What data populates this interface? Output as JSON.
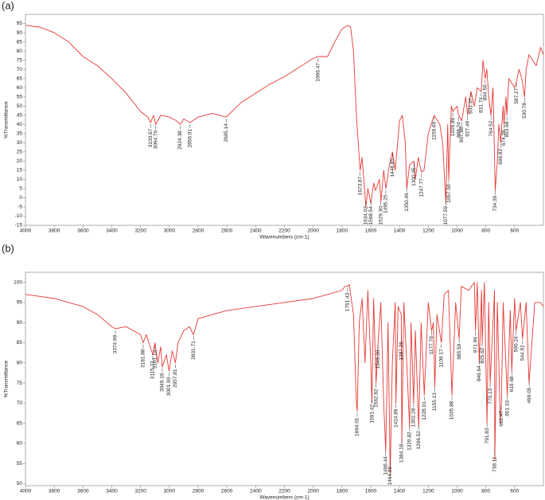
{
  "chart_data": [
    {
      "type": "line",
      "panel_label": "(a)",
      "xlabel": "Wavenumbers (cm-1)",
      "ylabel": "%Transmittance",
      "color": "#e53935",
      "xlim": [
        4000,
        400
      ],
      "ylim": [
        -15,
        100
      ],
      "xticks": [
        4000,
        3800,
        3600,
        3400,
        3200,
        3000,
        2800,
        2600,
        2400,
        2200,
        2000,
        1800,
        1600,
        1400,
        1200,
        1000,
        800,
        600
      ],
      "yticks": [
        -15,
        -10,
        -5,
        0,
        5,
        10,
        15,
        20,
        25,
        30,
        35,
        40,
        45,
        50,
        55,
        60,
        65,
        70,
        75,
        80,
        85,
        90,
        95
      ],
      "x": [
        4000,
        3900,
        3800,
        3700,
        3600,
        3500,
        3400,
        3300,
        3200,
        3150,
        3130,
        3110,
        3094,
        3060,
        3000,
        2950,
        2924,
        2900,
        2856,
        2800,
        2700,
        2605,
        2500,
        2400,
        2300,
        2200,
        2100,
        2000,
        1966,
        1900,
        1850,
        1800,
        1760,
        1740,
        1720,
        1700,
        1674,
        1660,
        1634,
        1620,
        1599,
        1580,
        1567,
        1540,
        1529,
        1510,
        1495,
        1470,
        1449,
        1430,
        1400,
        1380,
        1360,
        1350,
        1330,
        1300,
        1290,
        1270,
        1248,
        1230,
        1200,
        1160,
        1120,
        1100,
        1078,
        1065,
        1058,
        1040,
        1029,
        1000,
        989,
        968,
        940,
        927,
        904,
        880,
        860,
        832,
        820,
        805,
        793,
        780,
        765,
        750,
        735,
        720,
        710,
        697,
        680,
        674,
        660,
        654,
        640,
        600,
        588,
        570,
        550,
        531,
        520,
        500,
        450,
        420,
        400
      ],
      "values": [
        94,
        93,
        90,
        85,
        77,
        72,
        65,
        57,
        47,
        44,
        41,
        45,
        40,
        45,
        44,
        42,
        40,
        43,
        41,
        44,
        46,
        44,
        52,
        57,
        62,
        66,
        71,
        76,
        77,
        77,
        85,
        92,
        94,
        93,
        80,
        45,
        15,
        22,
        -5,
        5,
        -3,
        8,
        4,
        10,
        -2,
        15,
        5,
        18,
        25,
        15,
        42,
        45,
        30,
        5,
        18,
        20,
        10,
        22,
        14,
        15,
        35,
        45,
        40,
        30,
        -3,
        40,
        10,
        50,
        47,
        50,
        45,
        42,
        55,
        45,
        58,
        50,
        60,
        58,
        75,
        65,
        70,
        55,
        45,
        60,
        4,
        20,
        40,
        30,
        50,
        40,
        55,
        45,
        65,
        60,
        63,
        70,
        65,
        55,
        70,
        78,
        72,
        82,
        78
      ],
      "peaks": [
        {
          "value": 3130.67,
          "label": "3130.67"
        },
        {
          "value": 3094.7,
          "label": "3094.70"
        },
        {
          "value": 2924.38,
          "label": "2924.38"
        },
        {
          "value": 2856.01,
          "label": "2856.01"
        },
        {
          "value": 2605.14,
          "label": "2605.14"
        },
        {
          "value": 1966.47,
          "label": "1966.47"
        },
        {
          "value": 1673.87,
          "label": "1673.87"
        },
        {
          "value": 1634.02,
          "label": "1634.02"
        },
        {
          "value": 1598.54,
          "label": "1598.54"
        },
        {
          "value": 1529.3,
          "label": "1529.30"
        },
        {
          "value": 1495.25,
          "label": "1495.25"
        },
        {
          "value": 1448.85,
          "label": "1448.85"
        },
        {
          "value": 1350.46,
          "label": "1350.46"
        },
        {
          "value": 1300.05,
          "label": "1300.05"
        },
        {
          "value": 1247.77,
          "label": "1247.77"
        },
        {
          "value": 1159.69,
          "label": "1159.69"
        },
        {
          "value": 1077.59,
          "label": "1077.59"
        },
        {
          "value": 1057.59,
          "label": "1057.59"
        },
        {
          "value": 1029.86,
          "label": "1029.86"
        },
        {
          "value": 988.24,
          "label": "988.24"
        },
        {
          "value": 967.68,
          "label": "967.68"
        },
        {
          "value": 927.49,
          "label": "927.49"
        },
        {
          "value": 903.37,
          "label": "903.37"
        },
        {
          "value": 831.74,
          "label": "831.74"
        },
        {
          "value": 804.56,
          "label": "804.56"
        },
        {
          "value": 764.52,
          "label": "764.52"
        },
        {
          "value": 734.39,
          "label": "734.39"
        },
        {
          "value": 696.82,
          "label": "696.82"
        },
        {
          "value": 674.28,
          "label": "674.28"
        },
        {
          "value": 653.98,
          "label": "653.98"
        },
        {
          "value": 587.27,
          "label": "587.27"
        },
        {
          "value": 530.78,
          "label": "530.78"
        }
      ]
    },
    {
      "type": "line",
      "panel_label": "(b)",
      "xlabel": "Wavenumbers (cm-1)",
      "ylabel": "%Transmittance",
      "color": "#e53935",
      "xlim": [
        4000,
        400
      ],
      "ylim": [
        49.5,
        102.5
      ],
      "xticks": [
        4000,
        3800,
        3600,
        3400,
        3200,
        3000,
        2800,
        2600,
        2400,
        2200,
        2000,
        1800,
        1600,
        1400,
        1200,
        1000,
        800,
        600
      ],
      "yticks": [
        50,
        55,
        60,
        65,
        70,
        75,
        80,
        85,
        90,
        95,
        100
      ],
      "x": [
        4000,
        3900,
        3800,
        3700,
        3600,
        3500,
        3450,
        3400,
        3375,
        3300,
        3250,
        3200,
        3182,
        3160,
        3115,
        3100,
        3080,
        3060,
        3049,
        3020,
        3002,
        2980,
        2958,
        2940,
        2900,
        2860,
        2832,
        2800,
        2700,
        2600,
        2400,
        2200,
        2000,
        1900,
        1800,
        1780,
        1761,
        1750,
        1720,
        1700,
        1694,
        1680,
        1660,
        1640,
        1620,
        1600,
        1592,
        1580,
        1563,
        1549,
        1530,
        1510,
        1496,
        1480,
        1465,
        1450,
        1430,
        1425,
        1410,
        1388,
        1384,
        1370,
        1350,
        1330,
        1320,
        1302,
        1290,
        1267,
        1250,
        1228,
        1200,
        1177,
        1165,
        1155,
        1140,
        1109,
        1090,
        1060,
        1036,
        1010,
        986,
        970,
        920,
        880,
        872,
        860,
        846,
        830,
        826,
        810,
        792,
        780,
        770,
        740,
        738,
        720,
        700,
        692,
        680,
        651,
        630,
        620,
        600,
        590,
        560,
        545,
        520,
        500,
        490,
        460,
        420,
        400
      ],
      "values": [
        97,
        96.5,
        96,
        95,
        94,
        92,
        90.5,
        89,
        88.5,
        89,
        88,
        87,
        85,
        87,
        82,
        85,
        80,
        84,
        79,
        82,
        78,
        83,
        80,
        85,
        88,
        89,
        87,
        91,
        92,
        93,
        94,
        95,
        96,
        97,
        98,
        99,
        99,
        99.5,
        92,
        70,
        68,
        90,
        96,
        80,
        98,
        80,
        70,
        96,
        75,
        85,
        95,
        70,
        58,
        90,
        52,
        80,
        95,
        70,
        94,
        92,
        60,
        95,
        80,
        64,
        90,
        70,
        88,
        64,
        90,
        72,
        95,
        88,
        90,
        74,
        92,
        85,
        97,
        98,
        72,
        95,
        86,
        99,
        98,
        100,
        88,
        100,
        80,
        98,
        85,
        100,
        65,
        95,
        75,
        98,
        56,
        95,
        65,
        70,
        95,
        72,
        93,
        78,
        96,
        88,
        95,
        86,
        95,
        75,
        80,
        95,
        95,
        94
      ],
      "peaks": [
        {
          "value": 3374.99,
          "label": "3374.99"
        },
        {
          "value": 3181.88,
          "label": "3181.88"
        },
        {
          "value": 3115.72,
          "label": "3115.72"
        },
        {
          "value": 3101.14,
          "label": "3101.14"
        },
        {
          "value": 3049.16,
          "label": "3049.16"
        },
        {
          "value": 3001.9,
          "label": "3001.90"
        },
        {
          "value": 2957.81,
          "label": "2957.81"
        },
        {
          "value": 2831.71,
          "label": "2831.71"
        },
        {
          "value": 1761.43,
          "label": "1761.43"
        },
        {
          "value": 1694.01,
          "label": "1694.01"
        },
        {
          "value": 1591.42,
          "label": "1591.42"
        },
        {
          "value": 1562.82,
          "label": "1562.82"
        },
        {
          "value": 1549.3,
          "label": "1549.30"
        },
        {
          "value": 1496.44,
          "label": "1496.44"
        },
        {
          "value": 1464.99,
          "label": "1464.99"
        },
        {
          "value": 1424.89,
          "label": "1424.89"
        },
        {
          "value": 1387.36,
          "label": "1387.36"
        },
        {
          "value": 1384.18,
          "label": "1384.18"
        },
        {
          "value": 1329.82,
          "label": "1329.82"
        },
        {
          "value": 1302.28,
          "label": "1302.28"
        },
        {
          "value": 1266.52,
          "label": "1266.52"
        },
        {
          "value": 1228.01,
          "label": "1228.01"
        },
        {
          "value": 1177.76,
          "label": "1177.76"
        },
        {
          "value": 1155.13,
          "label": "1155.13"
        },
        {
          "value": 1109.17,
          "label": "1109.17"
        },
        {
          "value": 1035.88,
          "label": "1035.88"
        },
        {
          "value": 985.59,
          "label": "985.59"
        },
        {
          "value": 871.96,
          "label": "871.96"
        },
        {
          "value": 846.64,
          "label": "846.64"
        },
        {
          "value": 825.62,
          "label": "825.62"
        },
        {
          "value": 791.83,
          "label": "791.83"
        },
        {
          "value": 770.13,
          "label": "770.13"
        },
        {
          "value": 738.11,
          "label": "738.11"
        },
        {
          "value": 692.47,
          "label": "692.47"
        },
        {
          "value": 651.33,
          "label": "651.33"
        },
        {
          "value": 619.68,
          "label": "619.68"
        },
        {
          "value": 590.24,
          "label": "590.24"
        },
        {
          "value": 544.91,
          "label": "544.91"
        },
        {
          "value": 499.05,
          "label": "499.05"
        }
      ]
    }
  ]
}
